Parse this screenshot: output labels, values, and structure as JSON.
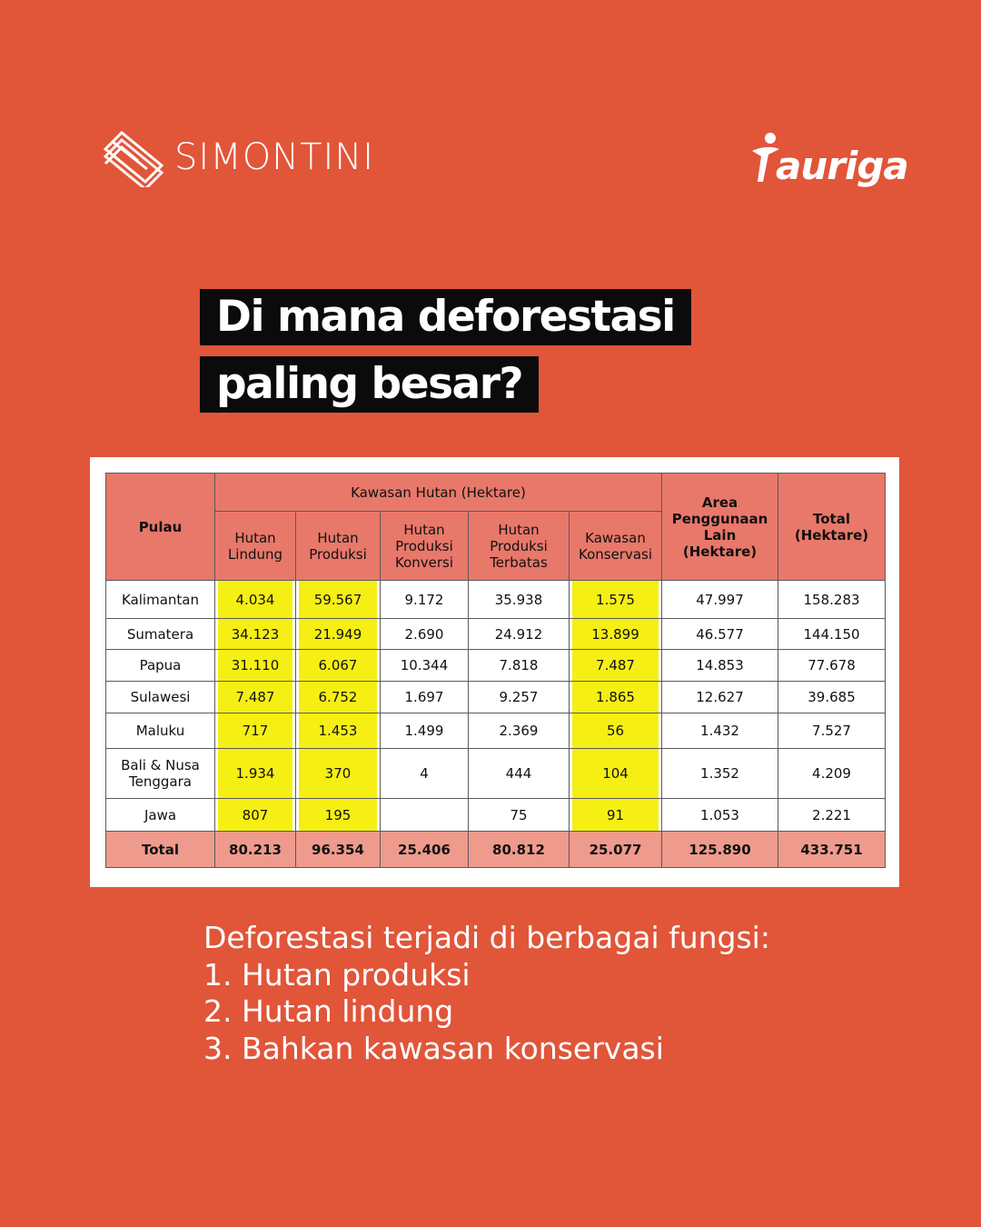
{
  "brands": {
    "left": "SIMONTINI",
    "right": "auriga"
  },
  "headline": {
    "line1": "Di mana deforestasi",
    "line2": "paling besar?"
  },
  "colors": {
    "background": "#e15539",
    "header": "#e8786a",
    "total_row": "#ee9a8c",
    "highlight": "#f6ef13"
  },
  "chart_data": {
    "type": "table",
    "header": {
      "region": "Pulau",
      "group": "Kawasan Hutan (Hektare)",
      "columns": [
        "Hutan\nLindung",
        "Hutan\nProduksi",
        "Hutan\nProduksi\nKonversi",
        "Hutan\nProduksi\nTerbatas",
        "Kawasan\nKonservasi"
      ],
      "other": "Area\nPenggunaan\nLain\n(Hektare)",
      "total": "Total\n(Hektare)"
    },
    "highlighted_columns": [
      "Hutan Lindung",
      "Hutan Produksi",
      "Kawasan Konservasi"
    ],
    "rows": [
      {
        "region": "Kalimantan",
        "values": [
          "4.034",
          "59.567",
          "9.172",
          "35.938",
          "1.575",
          "47.997",
          "158.283"
        ]
      },
      {
        "region": "Sumatera",
        "values": [
          "34.123",
          "21.949",
          "2.690",
          "24.912",
          "13.899",
          "46.577",
          "144.150"
        ]
      },
      {
        "region": "Papua",
        "values": [
          "31.110",
          "6.067",
          "10.344",
          "7.818",
          "7.487",
          "14.853",
          "77.678"
        ]
      },
      {
        "region": "Sulawesi",
        "values": [
          "7.487",
          "6.752",
          "1.697",
          "9.257",
          "1.865",
          "12.627",
          "39.685"
        ]
      },
      {
        "region": "Maluku",
        "values": [
          "717",
          "1.453",
          "1.499",
          "2.369",
          "56",
          "1.432",
          "7.527"
        ]
      },
      {
        "region": "Bali & Nusa\nTenggara",
        "values": [
          "1.934",
          "370",
          "4",
          "444",
          "104",
          "1.352",
          "4.209"
        ]
      },
      {
        "region": "Jawa",
        "values": [
          "807",
          "195",
          "",
          "75",
          "91",
          "1.053",
          "2.221"
        ]
      }
    ],
    "total": {
      "label": "Total",
      "values": [
        "80.213",
        "96.354",
        "25.406",
        "80.812",
        "25.077",
        "125.890",
        "433.751"
      ]
    }
  },
  "caption": {
    "intro": "Deforestasi terjadi di berbagai fungsi:",
    "items": [
      "1.  Hutan produksi",
      "2. Hutan lindung",
      "3. Bahkan kawasan konservasi"
    ]
  }
}
